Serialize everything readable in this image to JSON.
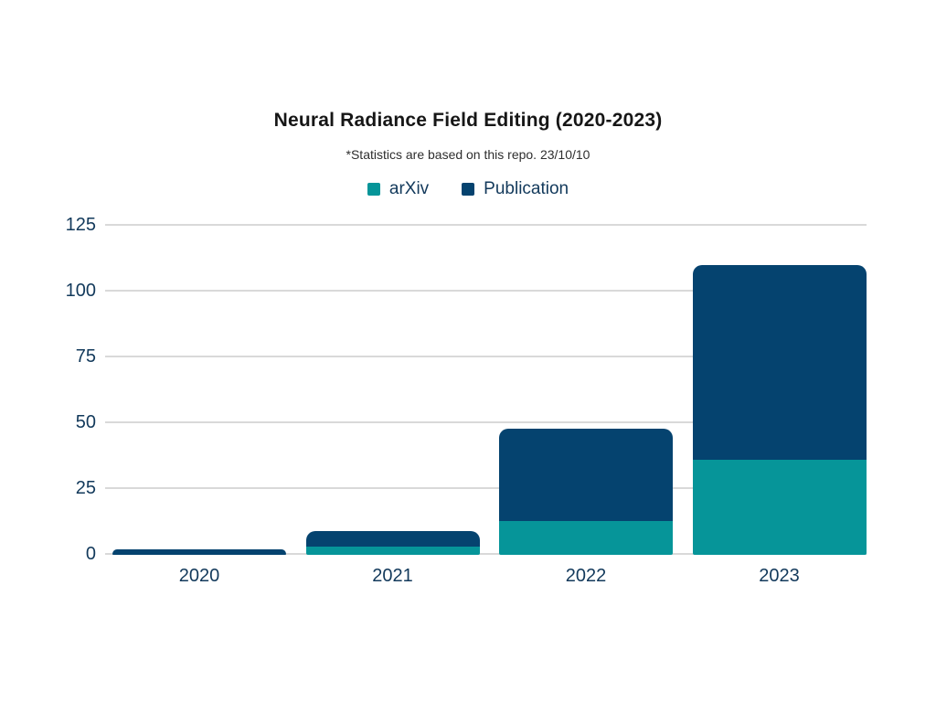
{
  "header": {
    "title": "Neural Radiance Field Editing (2020-2023)",
    "subtitle": "*Statistics are based on this repo. 23/10/10"
  },
  "chart_data": {
    "type": "bar",
    "stacked": true,
    "title": "Neural Radiance Field Editing (2020-2023)",
    "subtitle": "*Statistics are based on this repo. 23/10/10",
    "categories": [
      "2020",
      "2021",
      "2022",
      "2023"
    ],
    "series": [
      {
        "name": "arXiv",
        "color": "#069599",
        "values": [
          0,
          3,
          13,
          36
        ]
      },
      {
        "name": "Publication",
        "color": "#05436f",
        "values": [
          2,
          6,
          35,
          74
        ]
      }
    ],
    "totals": [
      2,
      9,
      48,
      110
    ],
    "yticks": [
      0,
      25,
      50,
      75,
      100,
      125
    ],
    "ylim": [
      0,
      125
    ],
    "grid": true,
    "legend_position": "top",
    "xlabel": "",
    "ylabel": ""
  },
  "colors": {
    "background": "#ffffff",
    "grid_line": "#d9d9d9",
    "axis_text": "#12395b",
    "title_text": "#161616",
    "subtitle_text": "#2e2e2e",
    "arxiv": "#069599",
    "publication": "#05436f"
  }
}
